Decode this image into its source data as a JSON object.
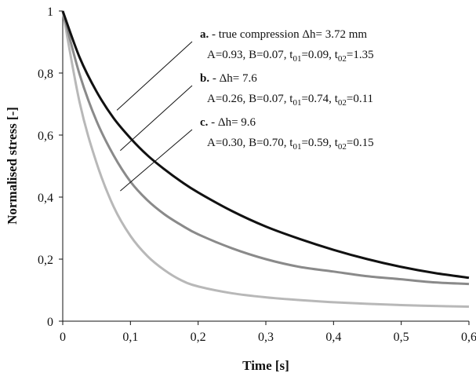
{
  "chart_data": {
    "type": "line",
    "title": "",
    "xlabel": "Time [s]",
    "ylabel": "Normalised stress [-]",
    "xlim": [
      0,
      0.6
    ],
    "ylim": [
      0,
      1
    ],
    "x_ticks": [
      0,
      0.1,
      0.2,
      0.3,
      0.4,
      0.5,
      0.6
    ],
    "x_tick_labels": [
      "0",
      "0,1",
      "0,2",
      "0,3",
      "0,4",
      "0,5",
      "0,6"
    ],
    "y_ticks": [
      0,
      0.2,
      0.4,
      0.6,
      0.8,
      1
    ],
    "y_tick_labels": [
      "0",
      "0,2",
      "0,4",
      "0,6",
      "0,8",
      "1"
    ],
    "grid": false,
    "x": [
      0,
      0.025,
      0.05,
      0.075,
      0.1,
      0.125,
      0.15,
      0.175,
      0.2,
      0.25,
      0.3,
      0.35,
      0.4,
      0.45,
      0.5,
      0.55,
      0.6
    ],
    "series": [
      {
        "color": "#111111",
        "values": [
          1.0,
          0.85,
          0.74,
          0.655,
          0.59,
          0.535,
          0.49,
          0.45,
          0.415,
          0.355,
          0.305,
          0.265,
          0.23,
          0.2,
          0.175,
          0.155,
          0.14
        ]
      },
      {
        "color": "#8a8a8a",
        "values": [
          1.0,
          0.795,
          0.645,
          0.535,
          0.45,
          0.39,
          0.345,
          0.31,
          0.28,
          0.235,
          0.2,
          0.175,
          0.16,
          0.145,
          0.135,
          0.125,
          0.12
        ]
      },
      {
        "color": "#b8b8b8",
        "values": [
          1.0,
          0.705,
          0.51,
          0.37,
          0.275,
          0.21,
          0.165,
          0.132,
          0.112,
          0.09,
          0.077,
          0.068,
          0.061,
          0.056,
          0.052,
          0.049,
          0.047
        ]
      }
    ],
    "annotations": [
      {
        "letter": "a.",
        "line1": " -  true compression Δh= 3.72 mm",
        "params": [
          {
            "name": "A",
            "value": "0.93"
          },
          {
            "name": "B",
            "value": "0.07"
          },
          {
            "name": "t",
            "sub": "01",
            "value": "0.09"
          },
          {
            "name": "t",
            "sub": "02",
            "value": "1.35"
          }
        ],
        "target": {
          "x": 0.08,
          "y": 0.68
        }
      },
      {
        "letter": "b.",
        "line1": " -  Δh= 7.6",
        "params": [
          {
            "name": "A",
            "value": "0.26"
          },
          {
            "name": "B",
            "value": "0.07"
          },
          {
            "name": "t",
            "sub": "01",
            "value": "0.74"
          },
          {
            "name": "t",
            "sub": "02",
            "value": "0.11"
          }
        ],
        "target": {
          "x": 0.085,
          "y": 0.55
        }
      },
      {
        "letter": "c.",
        "line1": " -  Δh= 9.6",
        "params": [
          {
            "name": "A",
            "value": "0.30"
          },
          {
            "name": "B",
            "value": "0.70"
          },
          {
            "name": "t",
            "sub": "01",
            "value": "0.59"
          },
          {
            "name": "t",
            "sub": "02",
            "value": "0.15"
          }
        ],
        "target": {
          "x": 0.085,
          "y": 0.42
        }
      }
    ]
  }
}
